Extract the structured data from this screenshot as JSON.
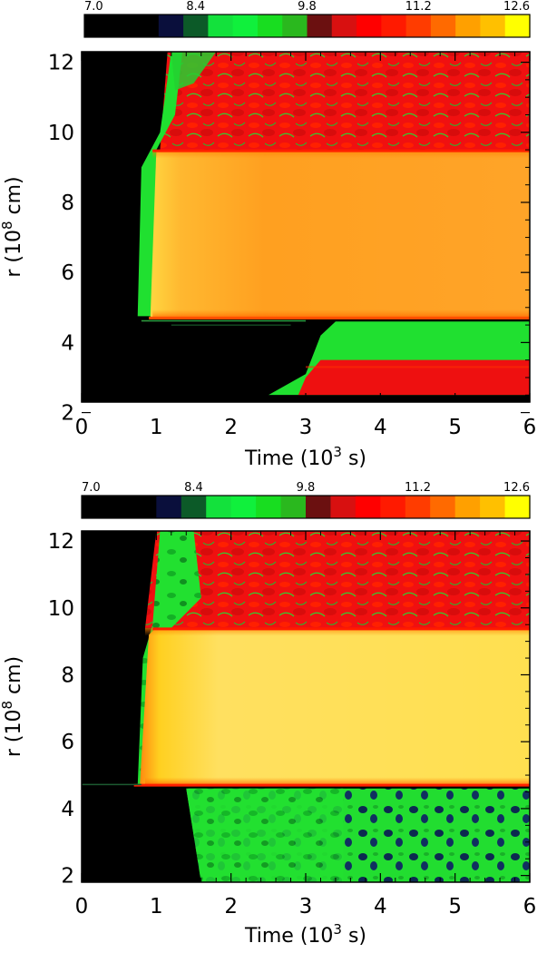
{
  "chart_data": [
    {
      "type": "heatmap",
      "panel": "top",
      "xlabel_main": "Time",
      "xlabel_unit_base": "(10",
      "xlabel_unit_exp": "3",
      "xlabel_unit_tail": " s)",
      "ylabel_main": "r",
      "ylabel_unit_base": "(10",
      "ylabel_unit_exp": "8",
      "ylabel_unit_tail": " cm)",
      "xlim": [
        0,
        6
      ],
      "ylim": [
        2.3,
        12.3
      ],
      "x_ticks": [
        0,
        1,
        2,
        3,
        4,
        5,
        6
      ],
      "x_tick_labels": [
        "0",
        "1",
        "2",
        "3",
        "4",
        "5",
        "6"
      ],
      "y_ticks": [
        2,
        4,
        6,
        8,
        10,
        12
      ],
      "y_tick_labels": [
        "2",
        "4",
        "6",
        "8",
        "10",
        "12"
      ],
      "colorbar": {
        "range": [
          7.0,
          12.6
        ],
        "tick_labels": [
          "7.0",
          "8.4",
          "9.8",
          "11.2",
          "12.6"
        ],
        "tick_values": [
          7.0,
          8.4,
          9.8,
          11.2,
          12.6
        ],
        "colors": [
          "#000000",
          "#000000",
          "#000000",
          "#0a0f3c",
          "#0c5a28",
          "#13e13c",
          "#10f03c",
          "#18dd20",
          "#2ab81e",
          "#6b1010",
          "#d81010",
          "#ff0000",
          "#ff1a00",
          "#ff3c00",
          "#ff6a00",
          "#ffa000",
          "#ffc000",
          "#ffff00"
        ]
      },
      "regions": {
        "shell_lower": 4.7,
        "shell_upper": 9.5,
        "onset_time_upper": 1.1,
        "onset_time_lower_start": 2.5,
        "onset_time_lower_end": 3.0,
        "lower_red_upper": 3.5,
        "lower_red_lower": 2.5
      }
    },
    {
      "type": "heatmap",
      "panel": "bottom",
      "xlabel_main": "Time",
      "xlabel_unit_base": "(10",
      "xlabel_unit_exp": "3",
      "xlabel_unit_tail": " s)",
      "ylabel_main": "r",
      "ylabel_unit_base": "(10",
      "ylabel_unit_exp": "8",
      "ylabel_unit_tail": " cm)",
      "xlim": [
        0,
        6
      ],
      "ylim": [
        1.8,
        12.3
      ],
      "x_ticks": [
        0,
        1,
        2,
        3,
        4,
        5,
        6
      ],
      "x_tick_labels": [
        "0",
        "1",
        "2",
        "3",
        "4",
        "5",
        "6"
      ],
      "y_ticks": [
        2,
        4,
        6,
        8,
        10,
        12
      ],
      "y_tick_labels": [
        "2",
        "4",
        "6",
        "8",
        "10",
        "12"
      ],
      "colorbar": {
        "range": [
          7.0,
          12.6
        ],
        "tick_labels": [
          "7.0",
          "8.4",
          "9.8",
          "11.2",
          "12.6"
        ],
        "tick_values": [
          7.0,
          8.4,
          9.8,
          11.2,
          12.6
        ],
        "colors": [
          "#000000",
          "#000000",
          "#000000",
          "#0a0f3c",
          "#0c5a28",
          "#13e13c",
          "#10f03c",
          "#18dd20",
          "#2ab81e",
          "#6b1010",
          "#d81010",
          "#ff0000",
          "#ff1a00",
          "#ff3c00",
          "#ff6a00",
          "#ffa000",
          "#ffc000",
          "#ffff00"
        ]
      },
      "regions": {
        "shell_lower": 4.7,
        "shell_upper": 9.4,
        "onset_time_upper": 0.9,
        "green_region_top": 4.6,
        "green_onset_time": 1.6
      }
    }
  ]
}
